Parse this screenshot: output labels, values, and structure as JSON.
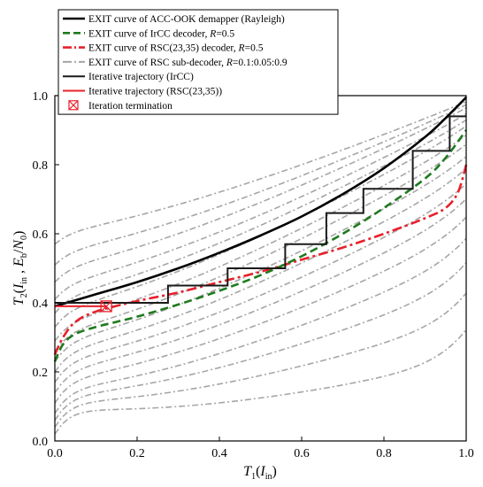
{
  "chart_data": {
    "type": "line",
    "xlabel": "T1(Iin)",
    "ylabel": "T2(Iin , Eb/N0)",
    "xlim": [
      0,
      1
    ],
    "ylim": [
      0,
      1
    ],
    "x_ticks": [
      "0.0",
      "0.2",
      "0.4",
      "0.6",
      "0.8",
      "1.0"
    ],
    "y_ticks": [
      "0.0",
      "0.2",
      "0.4",
      "0.6",
      "0.8",
      "1.0"
    ],
    "grid": false,
    "legend_position": "top-left",
    "legend": [
      {
        "label": "EXIT curve of ACC-OOK demapper  (Rayleigh)",
        "style": "solid",
        "color": "#000000"
      },
      {
        "label": "EXIT curve of IrCC decoder, R=0.5",
        "style": "dashed",
        "color": "#1e7a1e"
      },
      {
        "label": "EXIT curve of RSC(23,35) decoder, R=0.5",
        "style": "dashdot",
        "color": "#e8202a"
      },
      {
        "label": "EXIT curve of RSC sub-decoder, R=0.1:0.05:0.9",
        "style": "dashdot",
        "color": "#a6a6a6"
      },
      {
        "label": "Iterative trajectory (IrCC)",
        "style": "solid",
        "color": "#1a1a1a"
      },
      {
        "label": "Iterative trajectory (RSC(23,35))",
        "style": "solid",
        "color": "#e8202a"
      },
      {
        "label": "Iteration termination",
        "style": "marker",
        "color": "#e8202a"
      }
    ],
    "series": [
      {
        "name": "EXIT curve of ACC-OOK demapper  (Rayleigh)",
        "x": [
          0.0,
          0.1,
          0.2,
          0.3,
          0.4,
          0.5,
          0.6,
          0.7,
          0.8,
          0.9,
          0.95,
          1.0
        ],
        "y": [
          0.39,
          0.425,
          0.46,
          0.5,
          0.545,
          0.595,
          0.65,
          0.715,
          0.79,
          0.88,
          0.935,
          0.995
        ]
      },
      {
        "name": "EXIT curve of IrCC decoder, R=0.5",
        "x": [
          0.0,
          0.02,
          0.05,
          0.1,
          0.15,
          0.2,
          0.3,
          0.4,
          0.5,
          0.6,
          0.7,
          0.8,
          0.9,
          0.95,
          1.0
        ],
        "y": [
          0.23,
          0.28,
          0.31,
          0.33,
          0.345,
          0.36,
          0.395,
          0.435,
          0.48,
          0.535,
          0.6,
          0.675,
          0.76,
          0.82,
          0.9
        ]
      },
      {
        "name": "EXIT curve of RSC(23,35) decoder, R=0.5",
        "x": [
          0.0,
          0.02,
          0.05,
          0.1,
          0.2,
          0.3,
          0.4,
          0.5,
          0.6,
          0.7,
          0.8,
          0.9,
          0.95,
          0.98,
          1.0
        ],
        "y": [
          0.25,
          0.3,
          0.345,
          0.375,
          0.405,
          0.43,
          0.46,
          0.49,
          0.525,
          0.56,
          0.6,
          0.645,
          0.675,
          0.72,
          0.8
        ]
      },
      {
        "name": "EXIT curve of RSC sub-decoder, R=0.1:0.05:0.9",
        "start_levels": [
          0.02,
          0.04,
          0.06,
          0.08,
          0.11,
          0.14,
          0.17,
          0.2,
          0.23,
          0.26,
          0.29,
          0.33,
          0.37,
          0.41,
          0.46,
          0.51,
          0.57
        ],
        "end_levels": [
          0.23,
          0.35,
          0.45,
          0.53,
          0.6,
          0.66,
          0.71,
          0.76,
          0.8,
          0.84,
          0.87,
          0.9,
          0.92,
          0.94,
          0.96,
          0.97,
          0.98
        ]
      },
      {
        "name": "Iterative trajectory (IrCC)",
        "x": [
          0.0,
          0.275,
          0.275,
          0.42,
          0.42,
          0.56,
          0.56,
          0.66,
          0.66,
          0.75,
          0.75,
          0.87,
          0.87,
          0.96,
          0.96,
          1.0
        ],
        "y": [
          0.4,
          0.4,
          0.45,
          0.45,
          0.5,
          0.5,
          0.57,
          0.57,
          0.66,
          0.66,
          0.73,
          0.73,
          0.84,
          0.84,
          0.94,
          0.94
        ]
      },
      {
        "name": "Iterative trajectory (RSC(23,35))",
        "x": [
          0.0,
          0.125
        ],
        "y": [
          0.39,
          0.39
        ]
      }
    ],
    "termination_point": {
      "x": 0.125,
      "y": 0.39
    }
  }
}
